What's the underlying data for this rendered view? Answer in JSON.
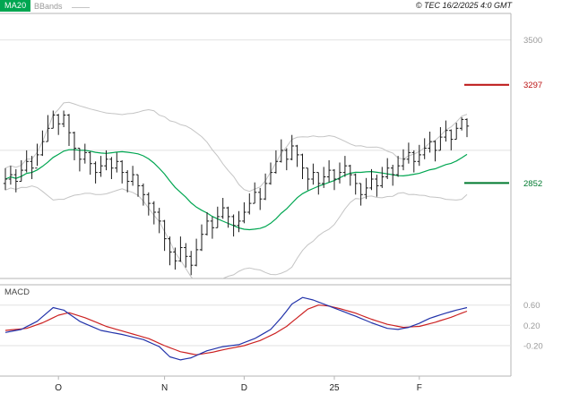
{
  "header": {
    "legend_ma20": "MA20",
    "legend_bbands": "BBands",
    "copyright": "© TEC 16/2/2025 4:0 GMT"
  },
  "colors": {
    "ma20": "#00a651",
    "bands": "#c4c4c4",
    "bars": "#1a1a1a",
    "macd_line": "#2233aa",
    "signal_line": "#cc2222",
    "level_up": "#bb1111",
    "level_down": "#007a2f",
    "grid": "#e2e2e2",
    "border": "#b5b5b5",
    "axis_text": "#9a9a9a",
    "month_text": "#222222"
  },
  "chart_data": {
    "type": "ohlc",
    "description": "Daily price bars with MA20 and Bollinger Bands overlays, MACD sub-panel, resistance 3297 and support 2852 levels",
    "price": {
      "ylim": [
        2420,
        3620
      ],
      "gridlines": [
        3500,
        3000
      ],
      "axis_labels": [
        {
          "text": "3500",
          "value": 3500,
          "color_key": "axis_text",
          "marker": false
        },
        {
          "text": "3297",
          "value": 3297,
          "color_key": "level_up",
          "marker": true
        },
        {
          "text": "2852",
          "value": 2852,
          "color_key": "level_down",
          "marker": true
        }
      ],
      "open": [
        2850,
        2870,
        2890,
        2860,
        2910,
        2950,
        2920,
        2980,
        3040,
        3100,
        3160,
        3120,
        3160,
        3080,
        3010,
        2960,
        2990,
        2940,
        2900,
        2930,
        2960,
        2920,
        2950,
        2900,
        2860,
        2890,
        2840,
        2800,
        2760,
        2720,
        2680,
        2600,
        2540,
        2500,
        2560,
        2520,
        2480,
        2550,
        2620,
        2680,
        2650,
        2700,
        2740,
        2700,
        2660,
        2680,
        2720,
        2760,
        2810,
        2780,
        2850,
        2900,
        2950,
        3000,
        2960,
        3020,
        2980,
        2920,
        2870,
        2900,
        2850,
        2880,
        2910,
        2870,
        2900,
        2930,
        2890,
        2850,
        2800,
        2830,
        2870,
        2840,
        2880,
        2920,
        2890,
        2930,
        2960,
        2990,
        2950,
        2980,
        3010,
        3040,
        3000,
        3060,
        3090,
        3050,
        3100,
        3140
      ],
      "high": [
        2920,
        2930,
        2915,
        2955,
        3000,
        2975,
        3030,
        3090,
        3160,
        3180,
        3165,
        3180,
        3165,
        3085,
        3010,
        3030,
        2995,
        2950,
        2975,
        3000,
        2970,
        2990,
        2955,
        2910,
        2930,
        2890,
        2850,
        2810,
        2770,
        2740,
        2685,
        2610,
        2560,
        2610,
        2580,
        2545,
        2600,
        2665,
        2720,
        2700,
        2745,
        2785,
        2745,
        2710,
        2725,
        2765,
        2805,
        2855,
        2830,
        2895,
        2945,
        3000,
        3050,
        3010,
        3070,
        3025,
        2985,
        2920,
        2940,
        2900,
        2925,
        2955,
        2915,
        2945,
        2975,
        2935,
        2895,
        2850,
        2875,
        2915,
        2890,
        2925,
        2965,
        2935,
        2975,
        3005,
        3035,
        3000,
        3025,
        3055,
        3085,
        3045,
        3105,
        3135,
        3095,
        3125,
        3150,
        3145
      ],
      "low": [
        2820,
        2845,
        2810,
        2860,
        2900,
        2870,
        2930,
        2975,
        3040,
        3100,
        3070,
        3105,
        3020,
        2955,
        2905,
        2940,
        2890,
        2850,
        2880,
        2910,
        2870,
        2900,
        2850,
        2810,
        2840,
        2790,
        2750,
        2705,
        2665,
        2625,
        2545,
        2480,
        2460,
        2495,
        2470,
        2435,
        2475,
        2545,
        2615,
        2600,
        2650,
        2690,
        2650,
        2610,
        2630,
        2670,
        2710,
        2760,
        2730,
        2775,
        2845,
        2895,
        2945,
        2910,
        2955,
        2925,
        2870,
        2820,
        2845,
        2800,
        2830,
        2855,
        2820,
        2850,
        2880,
        2840,
        2800,
        2750,
        2780,
        2820,
        2790,
        2830,
        2870,
        2840,
        2880,
        2910,
        2940,
        2900,
        2930,
        2960,
        2990,
        2950,
        3000,
        3040,
        3000,
        3050,
        3090,
        3060
      ],
      "close": [
        2870,
        2890,
        2860,
        2910,
        2950,
        2920,
        2980,
        3040,
        3100,
        3160,
        3120,
        3160,
        3080,
        3010,
        2960,
        2990,
        2940,
        2900,
        2930,
        2960,
        2920,
        2950,
        2900,
        2860,
        2890,
        2840,
        2800,
        2760,
        2720,
        2680,
        2600,
        2540,
        2500,
        2560,
        2520,
        2480,
        2550,
        2620,
        2680,
        2650,
        2700,
        2740,
        2700,
        2660,
        2680,
        2720,
        2760,
        2810,
        2780,
        2850,
        2900,
        2950,
        3000,
        2960,
        3020,
        2980,
        2920,
        2870,
        2900,
        2850,
        2880,
        2910,
        2870,
        2900,
        2930,
        2890,
        2850,
        2800,
        2830,
        2870,
        2840,
        2880,
        2920,
        2890,
        2930,
        2960,
        2990,
        2950,
        2980,
        3010,
        3040,
        3000,
        3060,
        3090,
        3050,
        3100,
        3140,
        3110
      ],
      "overlays": {
        "ma": {
          "label": "MA20",
          "window": 20
        },
        "bbands": {
          "label": "BBands",
          "window": 20,
          "mult": 2
        }
      }
    },
    "macd": {
      "label": "MACD",
      "ylim": [
        -0.8,
        1.0
      ],
      "axis_labels": [
        {
          "text": "0.60",
          "value": 0.6
        },
        {
          "text": "0.20",
          "value": 0.2
        },
        {
          "text": "-0.20",
          "value": -0.2
        }
      ],
      "macd_points": [
        [
          0,
          0.06
        ],
        [
          3,
          0.12
        ],
        [
          6,
          0.28
        ],
        [
          9,
          0.55
        ],
        [
          11,
          0.5
        ],
        [
          14,
          0.28
        ],
        [
          18,
          0.1
        ],
        [
          22,
          0.02
        ],
        [
          26,
          -0.08
        ],
        [
          29,
          -0.22
        ],
        [
          31,
          -0.42
        ],
        [
          33,
          -0.48
        ],
        [
          35,
          -0.44
        ],
        [
          38,
          -0.3
        ],
        [
          41,
          -0.22
        ],
        [
          44,
          -0.18
        ],
        [
          47,
          -0.06
        ],
        [
          50,
          0.12
        ],
        [
          52,
          0.35
        ],
        [
          54,
          0.62
        ],
        [
          56,
          0.75
        ],
        [
          58,
          0.7
        ],
        [
          60,
          0.62
        ],
        [
          63,
          0.5
        ],
        [
          66,
          0.38
        ],
        [
          69,
          0.25
        ],
        [
          72,
          0.14
        ],
        [
          74,
          0.12
        ],
        [
          76,
          0.16
        ],
        [
          78,
          0.24
        ],
        [
          80,
          0.34
        ],
        [
          83,
          0.44
        ],
        [
          85,
          0.5
        ],
        [
          87,
          0.55
        ]
      ],
      "signal_points": [
        [
          0,
          0.1
        ],
        [
          4,
          0.14
        ],
        [
          7,
          0.25
        ],
        [
          10,
          0.4
        ],
        [
          12,
          0.45
        ],
        [
          15,
          0.35
        ],
        [
          19,
          0.18
        ],
        [
          23,
          0.06
        ],
        [
          27,
          -0.06
        ],
        [
          30,
          -0.2
        ],
        [
          33,
          -0.32
        ],
        [
          36,
          -0.38
        ],
        [
          39,
          -0.33
        ],
        [
          42,
          -0.26
        ],
        [
          45,
          -0.2
        ],
        [
          48,
          -0.1
        ],
        [
          51,
          0.05
        ],
        [
          53,
          0.18
        ],
        [
          55,
          0.35
        ],
        [
          57,
          0.52
        ],
        [
          59,
          0.6
        ],
        [
          61,
          0.58
        ],
        [
          63,
          0.53
        ],
        [
          66,
          0.44
        ],
        [
          69,
          0.32
        ],
        [
          72,
          0.22
        ],
        [
          75,
          0.16
        ],
        [
          78,
          0.18
        ],
        [
          81,
          0.26
        ],
        [
          84,
          0.36
        ],
        [
          87,
          0.48
        ]
      ]
    },
    "x_axis": {
      "labels": [
        {
          "text": "O",
          "i": 10
        },
        {
          "text": "N",
          "i": 30
        },
        {
          "text": "D",
          "i": 45
        },
        {
          "text": "25",
          "i": 62
        },
        {
          "text": "F",
          "i": 78
        }
      ]
    }
  }
}
